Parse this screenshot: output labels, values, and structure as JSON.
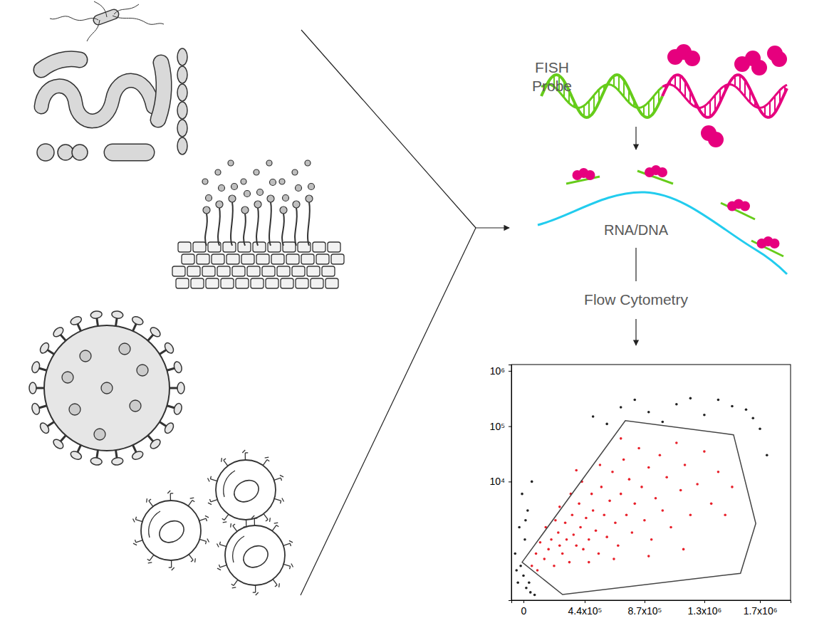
{
  "diagram": {
    "probe_label": [
      "FISH",
      "Probe"
    ],
    "target_label": "RNA/DNA",
    "step_label": "Flow Cytometry"
  },
  "chart_data": {
    "type": "scatter",
    "log": "y",
    "xlim": [
      -87000,
      1920000
    ],
    "ylim": [
      72,
      1300000
    ],
    "xticks": [
      0,
      {
        "value": 440000,
        "label": "4.4x10⁵"
      },
      {
        "value": 870000,
        "label": "8.7x10⁵"
      },
      {
        "value": 1300000,
        "label": "1.3x10⁶"
      },
      {
        "value": 1700000,
        "label": "1.7x10⁶"
      }
    ],
    "yticks": [
      {
        "value": 10000,
        "label": "10⁴"
      },
      {
        "value": 100000,
        "label": "10⁵"
      },
      {
        "value": 1000000,
        "label": "10⁶"
      }
    ],
    "series": [
      {
        "color": "#e8202a",
        "marker": "circle",
        "x": [
          150000,
          180000,
          200000,
          220000,
          250000,
          260000,
          280000,
          300000,
          310000,
          330000,
          350000,
          360000,
          380000,
          400000,
          410000,
          430000,
          450000,
          470000,
          490000,
          500000,
          520000,
          540000,
          560000,
          580000,
          600000,
          620000,
          640000,
          660000,
          680000,
          700000,
          720000,
          740000,
          760000,
          780000,
          800000,
          830000,
          850000,
          870000,
          900000,
          920000,
          950000,
          980000,
          1000000,
          1030000,
          1060000,
          1100000,
          1130000,
          1160000,
          1200000,
          1250000,
          1300000,
          1350000,
          1400000,
          100000,
          120000,
          90000,
          60000,
          230000,
          340000,
          420000,
          550000,
          470000,
          650000,
          900000,
          1150000,
          260000,
          160000,
          700000,
          380000,
          1500000,
          1450000
        ],
        "values": [
          400,
          600,
          900,
          300,
          1200,
          700,
          500,
          1800,
          900,
          350,
          2500,
          1100,
          700,
          4000,
          1500,
          600,
          2200,
          900,
          6000,
          3000,
          1300,
          500,
          8000,
          2500,
          1000,
          4500,
          15000,
          1800,
          700,
          6000,
          25000,
          2500,
          11000,
          1200,
          4000,
          40000,
          8000,
          2000,
          18000,
          900,
          5000,
          30000,
          3000,
          12000,
          1500,
          50000,
          7000,
          20000,
          2500,
          9000,
          35000,
          4000,
          15000,
          250,
          800,
          500,
          300,
          2000,
          6000,
          10000,
          20000,
          350,
          400,
          450,
          600,
          3500,
          1500,
          60000,
          16000,
          8000,
          2500
        ]
      },
      {
        "color": "#222222",
        "marker": "circle",
        "x": [
          -40000,
          -20000,
          0,
          20000,
          -60000,
          10000,
          40000,
          -30000,
          30000,
          -10000,
          50000,
          80000,
          -50000,
          15000,
          60000,
          500000,
          700000,
          900000,
          1100000,
          1300000,
          1500000,
          1600000,
          800000,
          1000000,
          1200000,
          600000,
          1400000,
          1700000,
          1750000,
          1650000
        ],
        "values": [
          150,
          300,
          200,
          120,
          500,
          900,
          150,
          1500,
          3000,
          6000,
          100,
          90,
          250,
          2000,
          10000,
          150000,
          220000,
          180000,
          250000,
          160000,
          230000,
          200000,
          300000,
          120000,
          320000,
          110000,
          300000,
          90000,
          30000,
          140000
        ]
      }
    ],
    "gate": {
      "x": [
        -10000,
        732000,
        1510000,
        1670000,
        1560000,
        281000
      ],
      "y": [
        350,
        126000,
        70000,
        1750,
        220,
        91
      ]
    }
  }
}
